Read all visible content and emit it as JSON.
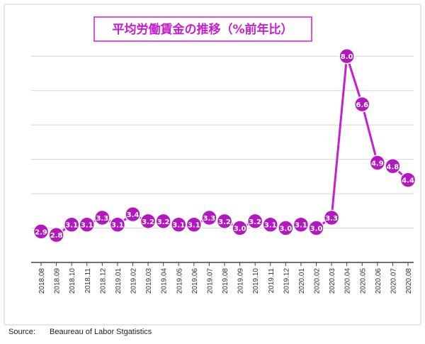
{
  "chart_data": {
    "type": "line",
    "title": "平均労働賃金の推移（%前年比）",
    "categories": [
      "2018.08",
      "2018.09",
      "2018.10",
      "2018.11",
      "2018.12",
      "2019.01",
      "2019.02",
      "2019.03",
      "2019.04",
      "2019.05",
      "2019.06",
      "2019.07",
      "2019.08",
      "2019.09",
      "2019.10",
      "2019.11",
      "2019.12",
      "2020.01",
      "2020.02",
      "2020.03",
      "2020.04",
      "2020.05",
      "2020.06",
      "2020.07",
      "2020.08"
    ],
    "values": [
      2.9,
      2.8,
      3.1,
      3.1,
      3.3,
      3.1,
      3.4,
      3.2,
      3.2,
      3.1,
      3.1,
      3.3,
      3.2,
      3.0,
      3.2,
      3.1,
      3.0,
      3.1,
      3.0,
      3.3,
      8.0,
      6.6,
      4.9,
      4.8,
      4.4
    ],
    "value_labels": [
      "2.9",
      "2.8",
      "3.1",
      "3.1",
      "3.3",
      "3.1",
      "3.4",
      "3.2",
      "3.2",
      "3.1",
      "3.1",
      "3.3",
      "3.2",
      "3.0",
      "3.2",
      "3.1",
      "3.0",
      "3.1",
      "3.0",
      "3.3",
      "8.0",
      "6.6",
      "4.9",
      "4.8",
      "4.4"
    ],
    "ylim": [
      2,
      8.5
    ],
    "grid": true,
    "colors": {
      "line": "#c81ed2",
      "marker": "#b317c0",
      "title_border": "#c81ed2",
      "title_text": "#c81ed2"
    }
  },
  "footer": {
    "source_label": "Source:",
    "source_text": "Beaureau of Labor Stgatistics"
  }
}
